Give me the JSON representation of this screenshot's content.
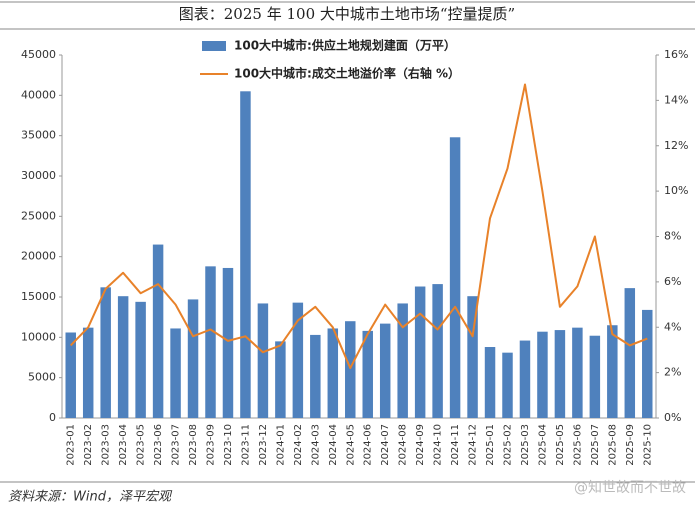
{
  "chart_data": {
    "type": "bar",
    "title": "图表：2025 年 100 大中城市土地市场“控量提质”",
    "source": "资料来源：Wind，泽平宏观",
    "watermark": "@知世故而不世故",
    "categories": [
      "2023-01",
      "2023-02",
      "2023-03",
      "2023-04",
      "2023-05",
      "2023-06",
      "2023-07",
      "2023-08",
      "2023-09",
      "2023-10",
      "2023-11",
      "2023-12",
      "2024-01",
      "2024-02",
      "2024-03",
      "2024-04",
      "2024-05",
      "2024-06",
      "2024-07",
      "2024-08",
      "2024-09",
      "2024-10",
      "2024-11",
      "2024-12",
      "2025-01",
      "2025-02",
      "2025-03",
      "2025-04",
      "2025-05",
      "2025-06",
      "2025-07",
      "2025-08",
      "2025-09",
      "2025-10"
    ],
    "series": [
      {
        "name": "100大中城市:供应土地规划建面（万平）",
        "color": "#4f81bd",
        "values": [
          10600,
          11200,
          16200,
          15100,
          14400,
          21500,
          11100,
          14700,
          18800,
          18600,
          40500,
          14200,
          9500,
          14300,
          10300,
          11100,
          12000,
          10800,
          11700,
          14200,
          16300,
          16600,
          34800,
          15100,
          8800,
          8100,
          9600,
          10700,
          10900,
          11200,
          10200,
          11500,
          16100,
          13400
        ]
      },
      {
        "name": "100大中城市:成交土地溢价率（右轴 %）",
        "color": "#e8822a",
        "axis": "y2",
        "type": "line",
        "values": [
          3.2,
          4.0,
          5.7,
          6.4,
          5.5,
          5.9,
          5.0,
          3.6,
          3.9,
          3.4,
          3.6,
          2.9,
          3.2,
          4.3,
          4.9,
          4.0,
          2.2,
          3.7,
          5.0,
          4.0,
          4.6,
          3.9,
          4.9,
          3.6,
          8.8,
          11.0,
          14.7,
          10.0,
          4.9,
          5.8,
          8.0,
          3.7,
          3.2,
          3.5
        ]
      }
    ],
    "ylim": [
      0,
      45000
    ],
    "yticks": [
      0,
      5000,
      10000,
      15000,
      20000,
      25000,
      30000,
      35000,
      40000,
      45000
    ],
    "y2lim": [
      0,
      16
    ],
    "y2ticks": [
      {
        "value": 0,
        "label": "0%"
      },
      {
        "value": 2,
        "label": "2%"
      },
      {
        "value": 4,
        "label": "4%"
      },
      {
        "value": 6,
        "label": "6%"
      },
      {
        "value": 8,
        "label": "8%"
      },
      {
        "value": 10,
        "label": "10%"
      },
      {
        "value": 12,
        "label": "12%"
      },
      {
        "value": 14,
        "label": "14%"
      },
      {
        "value": 16,
        "label": "16%"
      }
    ],
    "grid": false
  }
}
